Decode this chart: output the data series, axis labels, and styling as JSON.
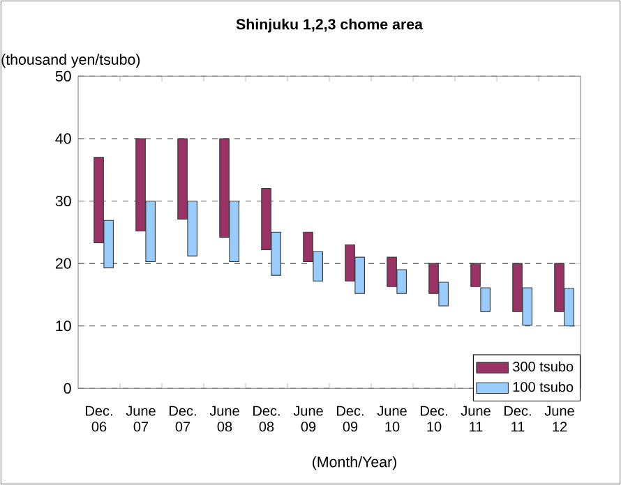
{
  "chart_data": {
    "type": "bar",
    "title": "Shinjuku 1,2,3 chome area",
    "ylabel": "(thousand yen/tsubo)",
    "xlabel": "(Month/Year)",
    "categories": [
      "Dec. 06",
      "June 07",
      "Dec. 07",
      "June 08",
      "Dec. 08",
      "June 09",
      "Dec. 09",
      "June 10",
      "Dec. 10",
      "June 11",
      "Dec. 11",
      "June 12"
    ],
    "series": [
      {
        "name": "300 tsubo",
        "color": "#993366",
        "base": [
          23.3,
          25.2,
          27.1,
          24.2,
          22.2,
          20.3,
          17.2,
          16.3,
          15.2,
          16.3,
          12.3,
          12.3
        ],
        "values": [
          13.7,
          14.8,
          12.9,
          15.8,
          9.8,
          4.7,
          5.8,
          4.7,
          4.8,
          3.7,
          7.7,
          7.7
        ]
      },
      {
        "name": "100 tsubo",
        "color": "#99ccff",
        "base": [
          19.3,
          20.3,
          21.2,
          20.3,
          18.1,
          17.2,
          15.2,
          15.2,
          13.2,
          12.3,
          10.1,
          10.0
        ],
        "values": [
          7.6,
          9.7,
          8.8,
          9.7,
          6.9,
          4.7,
          5.8,
          3.8,
          3.8,
          3.8,
          6.0,
          6.0
        ]
      }
    ],
    "ylim": [
      0,
      50
    ],
    "yticks": [
      0,
      10,
      20,
      30,
      40,
      50
    ],
    "grid": "y",
    "legend": "bottom right"
  }
}
